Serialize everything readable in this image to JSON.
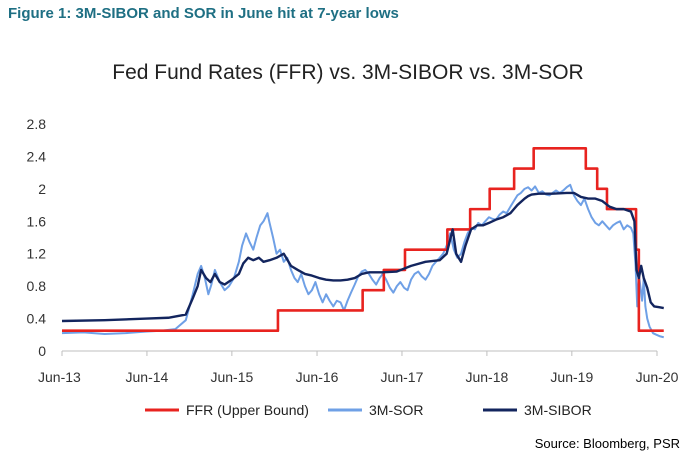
{
  "figure_title": "Figure 1: 3M-SIBOR and SOR in June hit at 7-year lows",
  "source": "Source: Bloomberg, PSR",
  "colors": {
    "ffr": "#e8231f",
    "sor": "#6fa0e6",
    "sibor": "#13255e",
    "title": "#1e6f83"
  },
  "chart_data": {
    "type": "line",
    "title": "Fed Fund Rates (FFR) vs. 3M-SIBOR vs. 3M-SOR",
    "xlabel": "",
    "ylabel": "",
    "xlim": [
      "2013-06",
      "2020-06"
    ],
    "ylim": [
      0,
      2.8
    ],
    "yticks": [
      "0",
      "0.4",
      "0.8",
      "1.2",
      "1.6",
      "2",
      "2.4",
      "2.8"
    ],
    "xticks": [
      "Jun-13",
      "Jun-14",
      "Jun-15",
      "Jun-16",
      "Jun-17",
      "Jun-18",
      "Jun-19",
      "Jun-20"
    ],
    "legend_position": "bottom",
    "grid": false,
    "series": [
      {
        "name": "FFR (Upper Bound)",
        "step": true,
        "points": [
          [
            "2013-06-01",
            0.25
          ],
          [
            "2015-12-16",
            0.5
          ],
          [
            "2016-12-14",
            0.75
          ],
          [
            "2017-03-15",
            1.0
          ],
          [
            "2017-06-14",
            1.25
          ],
          [
            "2017-12-13",
            1.5
          ],
          [
            "2018-03-21",
            1.75
          ],
          [
            "2018-06-13",
            2.0
          ],
          [
            "2018-09-26",
            2.25
          ],
          [
            "2018-12-19",
            2.5
          ],
          [
            "2019-07-31",
            2.25
          ],
          [
            "2019-09-18",
            2.0
          ],
          [
            "2019-10-30",
            1.75
          ],
          [
            "2020-03-03",
            1.25
          ],
          [
            "2020-03-15",
            0.25
          ],
          [
            "2020-06-30",
            0.25
          ]
        ]
      },
      {
        "name": "3M-SOR",
        "points": [
          [
            "2013-06-01",
            0.22
          ],
          [
            "2013-09-01",
            0.23
          ],
          [
            "2013-12-01",
            0.21
          ],
          [
            "2014-03-01",
            0.22
          ],
          [
            "2014-06-01",
            0.24
          ],
          [
            "2014-08-01",
            0.25
          ],
          [
            "2014-10-01",
            0.27
          ],
          [
            "2014-11-15",
            0.38
          ],
          [
            "2014-12-15",
            0.7
          ],
          [
            "2015-01-05",
            0.95
          ],
          [
            "2015-01-20",
            1.05
          ],
          [
            "2015-02-05",
            0.9
          ],
          [
            "2015-02-20",
            0.7
          ],
          [
            "2015-03-05",
            0.82
          ],
          [
            "2015-03-20",
            1.0
          ],
          [
            "2015-04-10",
            0.85
          ],
          [
            "2015-05-01",
            0.75
          ],
          [
            "2015-05-20",
            0.8
          ],
          [
            "2015-06-10",
            0.9
          ],
          [
            "2015-07-01",
            1.1
          ],
          [
            "2015-07-15",
            1.3
          ],
          [
            "2015-08-01",
            1.45
          ],
          [
            "2015-08-15",
            1.35
          ],
          [
            "2015-09-01",
            1.25
          ],
          [
            "2015-09-15",
            1.4
          ],
          [
            "2015-10-01",
            1.55
          ],
          [
            "2015-10-15",
            1.6
          ],
          [
            "2015-11-01",
            1.7
          ],
          [
            "2015-11-10",
            1.58
          ],
          [
            "2015-11-25",
            1.4
          ],
          [
            "2015-12-10",
            1.2
          ],
          [
            "2015-12-25",
            1.25
          ],
          [
            "2016-01-10",
            1.1
          ],
          [
            "2016-01-25",
            1.15
          ],
          [
            "2016-02-10",
            1.0
          ],
          [
            "2016-02-25",
            0.9
          ],
          [
            "2016-03-10",
            0.85
          ],
          [
            "2016-03-25",
            0.95
          ],
          [
            "2016-04-10",
            0.8
          ],
          [
            "2016-04-25",
            0.7
          ],
          [
            "2016-05-10",
            0.75
          ],
          [
            "2016-05-25",
            0.85
          ],
          [
            "2016-06-10",
            0.7
          ],
          [
            "2016-06-25",
            0.6
          ],
          [
            "2016-07-10",
            0.7
          ],
          [
            "2016-07-25",
            0.62
          ],
          [
            "2016-08-10",
            0.55
          ],
          [
            "2016-08-25",
            0.62
          ],
          [
            "2016-09-10",
            0.6
          ],
          [
            "2016-09-25",
            0.5
          ],
          [
            "2016-10-10",
            0.62
          ],
          [
            "2016-10-25",
            0.72
          ],
          [
            "2016-11-10",
            0.82
          ],
          [
            "2016-11-25",
            0.92
          ],
          [
            "2016-12-10",
            0.98
          ],
          [
            "2016-12-25",
            1.0
          ],
          [
            "2017-01-10",
            0.95
          ],
          [
            "2017-01-25",
            0.88
          ],
          [
            "2017-02-10",
            0.82
          ],
          [
            "2017-02-25",
            0.9
          ],
          [
            "2017-03-10",
            0.95
          ],
          [
            "2017-03-25",
            0.88
          ],
          [
            "2017-04-10",
            0.78
          ],
          [
            "2017-04-25",
            0.72
          ],
          [
            "2017-05-10",
            0.8
          ],
          [
            "2017-05-25",
            0.85
          ],
          [
            "2017-06-10",
            0.78
          ],
          [
            "2017-06-25",
            0.75
          ],
          [
            "2017-07-10",
            0.88
          ],
          [
            "2017-07-25",
            0.95
          ],
          [
            "2017-08-10",
            0.98
          ],
          [
            "2017-08-25",
            0.92
          ],
          [
            "2017-09-10",
            0.88
          ],
          [
            "2017-09-25",
            0.95
          ],
          [
            "2017-10-10",
            1.05
          ],
          [
            "2017-10-25",
            1.1
          ],
          [
            "2017-11-10",
            1.15
          ],
          [
            "2017-11-25",
            1.2
          ],
          [
            "2017-12-10",
            1.3
          ],
          [
            "2017-12-25",
            1.45
          ],
          [
            "2018-01-10",
            1.25
          ],
          [
            "2018-01-25",
            1.15
          ],
          [
            "2018-02-10",
            1.2
          ],
          [
            "2018-02-25",
            1.35
          ],
          [
            "2018-03-10",
            1.45
          ],
          [
            "2018-03-25",
            1.52
          ],
          [
            "2018-04-10",
            1.5
          ],
          [
            "2018-04-25",
            1.58
          ],
          [
            "2018-05-10",
            1.55
          ],
          [
            "2018-05-25",
            1.6
          ],
          [
            "2018-06-10",
            1.65
          ],
          [
            "2018-06-25",
            1.63
          ],
          [
            "2018-07-10",
            1.62
          ],
          [
            "2018-07-25",
            1.68
          ],
          [
            "2018-08-10",
            1.72
          ],
          [
            "2018-08-25",
            1.7
          ],
          [
            "2018-09-10",
            1.78
          ],
          [
            "2018-09-25",
            1.85
          ],
          [
            "2018-10-10",
            1.92
          ],
          [
            "2018-10-25",
            1.95
          ],
          [
            "2018-11-10",
            2.0
          ],
          [
            "2018-11-25",
            2.02
          ],
          [
            "2018-12-10",
            1.98
          ],
          [
            "2018-12-25",
            2.03
          ],
          [
            "2019-01-10",
            1.95
          ],
          [
            "2019-01-25",
            1.97
          ],
          [
            "2019-02-10",
            1.93
          ],
          [
            "2019-02-25",
            1.92
          ],
          [
            "2019-03-10",
            1.95
          ],
          [
            "2019-03-25",
            1.98
          ],
          [
            "2019-04-10",
            1.95
          ],
          [
            "2019-04-25",
            1.98
          ],
          [
            "2019-05-10",
            2.02
          ],
          [
            "2019-05-25",
            2.05
          ],
          [
            "2019-06-10",
            1.92
          ],
          [
            "2019-06-25",
            1.85
          ],
          [
            "2019-07-10",
            1.8
          ],
          [
            "2019-07-25",
            1.88
          ],
          [
            "2019-08-10",
            1.75
          ],
          [
            "2019-08-25",
            1.65
          ],
          [
            "2019-09-10",
            1.58
          ],
          [
            "2019-09-25",
            1.55
          ],
          [
            "2019-10-10",
            1.6
          ],
          [
            "2019-10-25",
            1.55
          ],
          [
            "2019-11-10",
            1.5
          ],
          [
            "2019-11-25",
            1.55
          ],
          [
            "2019-12-10",
            1.58
          ],
          [
            "2019-12-25",
            1.6
          ],
          [
            "2020-01-10",
            1.5
          ],
          [
            "2020-01-25",
            1.55
          ],
          [
            "2020-02-10",
            1.52
          ],
          [
            "2020-02-20",
            1.45
          ],
          [
            "2020-03-01",
            1.05
          ],
          [
            "2020-03-08",
            0.55
          ],
          [
            "2020-03-15",
            0.95
          ],
          [
            "2020-03-22",
            0.78
          ],
          [
            "2020-03-29",
            0.62
          ],
          [
            "2020-04-05",
            0.9
          ],
          [
            "2020-04-12",
            0.55
          ],
          [
            "2020-04-20",
            0.4
          ],
          [
            "2020-04-30",
            0.3
          ],
          [
            "2020-05-15",
            0.22
          ],
          [
            "2020-05-30",
            0.2
          ],
          [
            "2020-06-15",
            0.18
          ],
          [
            "2020-06-30",
            0.17
          ]
        ]
      },
      {
        "name": "3M-SIBOR",
        "points": [
          [
            "2013-06-01",
            0.37
          ],
          [
            "2013-12-01",
            0.38
          ],
          [
            "2014-06-01",
            0.4
          ],
          [
            "2014-09-01",
            0.41
          ],
          [
            "2014-11-15",
            0.45
          ],
          [
            "2014-12-15",
            0.65
          ],
          [
            "2015-01-05",
            0.8
          ],
          [
            "2015-01-20",
            1.0
          ],
          [
            "2015-02-10",
            0.9
          ],
          [
            "2015-03-01",
            0.85
          ],
          [
            "2015-03-20",
            0.95
          ],
          [
            "2015-04-10",
            0.85
          ],
          [
            "2015-05-01",
            0.82
          ],
          [
            "2015-06-01",
            0.88
          ],
          [
            "2015-07-01",
            0.95
          ],
          [
            "2015-07-20",
            1.08
          ],
          [
            "2015-08-10",
            1.15
          ],
          [
            "2015-09-01",
            1.12
          ],
          [
            "2015-09-25",
            1.15
          ],
          [
            "2015-10-15",
            1.1
          ],
          [
            "2015-11-10",
            1.12
          ],
          [
            "2015-12-10",
            1.15
          ],
          [
            "2016-01-10",
            1.2
          ],
          [
            "2016-02-10",
            1.05
          ],
          [
            "2016-03-10",
            1.0
          ],
          [
            "2016-04-10",
            0.95
          ],
          [
            "2016-05-10",
            0.93
          ],
          [
            "2016-06-10",
            0.9
          ],
          [
            "2016-07-10",
            0.88
          ],
          [
            "2016-08-10",
            0.87
          ],
          [
            "2016-09-10",
            0.87
          ],
          [
            "2016-10-10",
            0.88
          ],
          [
            "2016-11-10",
            0.9
          ],
          [
            "2016-12-10",
            0.95
          ],
          [
            "2017-01-10",
            0.97
          ],
          [
            "2017-03-10",
            0.97
          ],
          [
            "2017-05-10",
            0.98
          ],
          [
            "2017-07-10",
            1.05
          ],
          [
            "2017-09-10",
            1.1
          ],
          [
            "2017-11-10",
            1.12
          ],
          [
            "2017-12-10",
            1.2
          ],
          [
            "2018-01-05",
            1.5
          ],
          [
            "2018-01-20",
            1.2
          ],
          [
            "2018-02-10",
            1.1
          ],
          [
            "2018-03-01",
            1.3
          ],
          [
            "2018-03-25",
            1.5
          ],
          [
            "2018-04-20",
            1.55
          ],
          [
            "2018-05-15",
            1.55
          ],
          [
            "2018-06-10",
            1.58
          ],
          [
            "2018-07-10",
            1.62
          ],
          [
            "2018-08-10",
            1.65
          ],
          [
            "2018-09-10",
            1.7
          ],
          [
            "2018-09-25",
            1.75
          ],
          [
            "2018-10-10",
            1.8
          ],
          [
            "2018-11-10",
            1.88
          ],
          [
            "2018-11-25",
            1.91
          ],
          [
            "2018-12-10",
            1.93
          ],
          [
            "2019-01-10",
            1.94
          ],
          [
            "2019-03-10",
            1.94
          ],
          [
            "2019-05-10",
            1.95
          ],
          [
            "2019-06-10",
            1.95
          ],
          [
            "2019-07-10",
            1.9
          ],
          [
            "2019-08-10",
            1.88
          ],
          [
            "2019-09-10",
            1.88
          ],
          [
            "2019-10-10",
            1.85
          ],
          [
            "2019-11-10",
            1.78
          ],
          [
            "2019-12-10",
            1.75
          ],
          [
            "2020-01-10",
            1.75
          ],
          [
            "2020-02-10",
            1.72
          ],
          [
            "2020-02-25",
            1.6
          ],
          [
            "2020-03-05",
            1.0
          ],
          [
            "2020-03-15",
            0.9
          ],
          [
            "2020-03-25",
            1.05
          ],
          [
            "2020-04-05",
            0.9
          ],
          [
            "2020-04-20",
            0.78
          ],
          [
            "2020-05-05",
            0.6
          ],
          [
            "2020-05-20",
            0.55
          ],
          [
            "2020-06-10",
            0.54
          ],
          [
            "2020-06-30",
            0.53
          ]
        ]
      }
    ]
  }
}
